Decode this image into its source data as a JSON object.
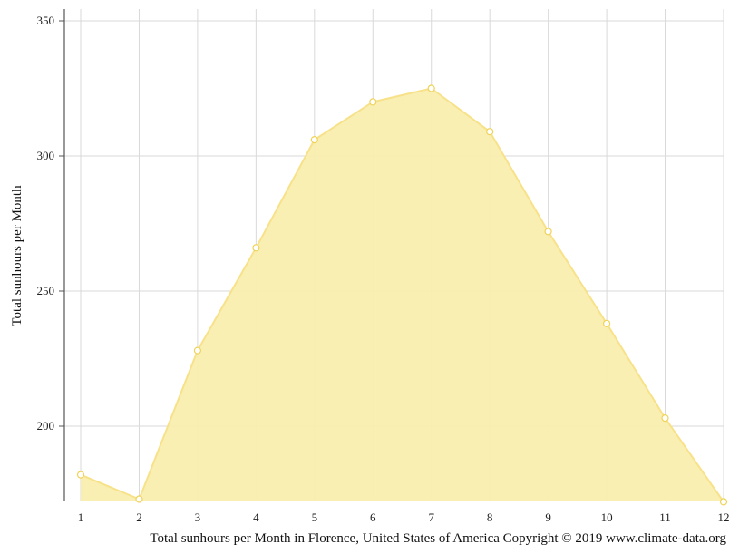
{
  "chart_data": {
    "type": "area",
    "x": [
      1,
      2,
      3,
      4,
      5,
      6,
      7,
      8,
      9,
      10,
      11,
      12
    ],
    "series": [
      {
        "values": [
          182,
          173,
          228,
          266,
          306,
          320,
          325,
          309,
          272,
          238,
          203,
          172
        ]
      }
    ],
    "xticks": [
      "1",
      "2",
      "3",
      "4",
      "5",
      "6",
      "7",
      "8",
      "9",
      "10",
      "11",
      "12"
    ],
    "yticks": [
      "200",
      "250",
      "300",
      "350"
    ],
    "ylabel": "Total sunhours per Month",
    "xlabel": "",
    "caption": "Total sunhours per Month in Florence, United States of America Copyright © 2019 www.climate-data.org",
    "xlim": [
      1,
      12
    ],
    "ylim": [
      172,
      355
    ],
    "grid": true,
    "colors": {
      "fill": "#f9eeaf",
      "line": "#f7e28a",
      "marker_stroke": "#f0d257",
      "marker_fill": "#ffffff",
      "grid": "#d9d9d9",
      "axis": "#555555"
    }
  }
}
